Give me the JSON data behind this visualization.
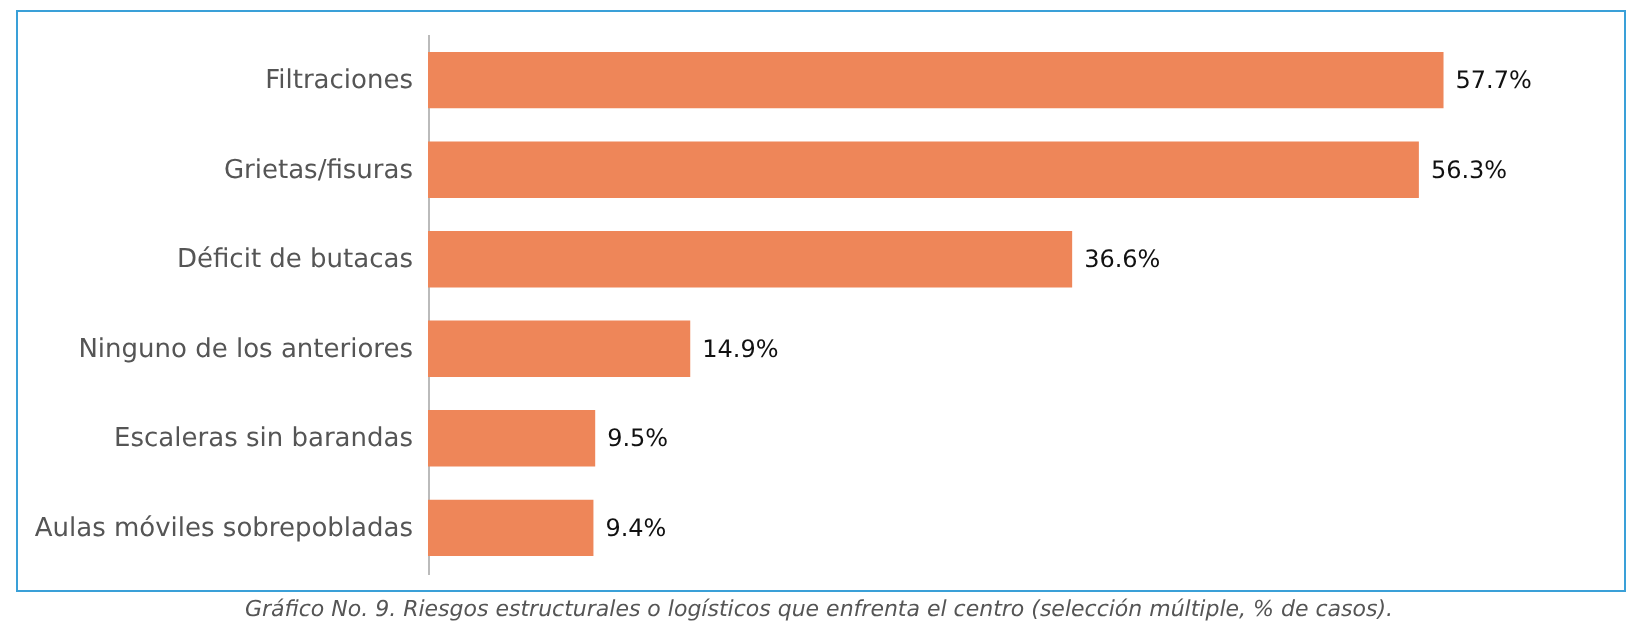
{
  "chart_data": {
    "type": "bar",
    "orientation": "horizontal",
    "categories": [
      "Filtraciones",
      "Grietas/fisuras",
      "Déficit de butacas",
      "Ninguno de los anteriores",
      "Escaleras sin barandas",
      "Aulas móviles sobrepobladas"
    ],
    "values": [
      57.7,
      56.3,
      36.6,
      14.9,
      9.5,
      9.4
    ],
    "value_labels": [
      "57.7%",
      "56.3%",
      "36.6%",
      "14.9%",
      "9.5%",
      "9.4%"
    ],
    "color": "#ee8659",
    "annotations": [
      "Gráfico No. 9. Riesgos estructurales o logísticos que enfrenta el centro (selección múltiple, % de casos)."
    ]
  }
}
